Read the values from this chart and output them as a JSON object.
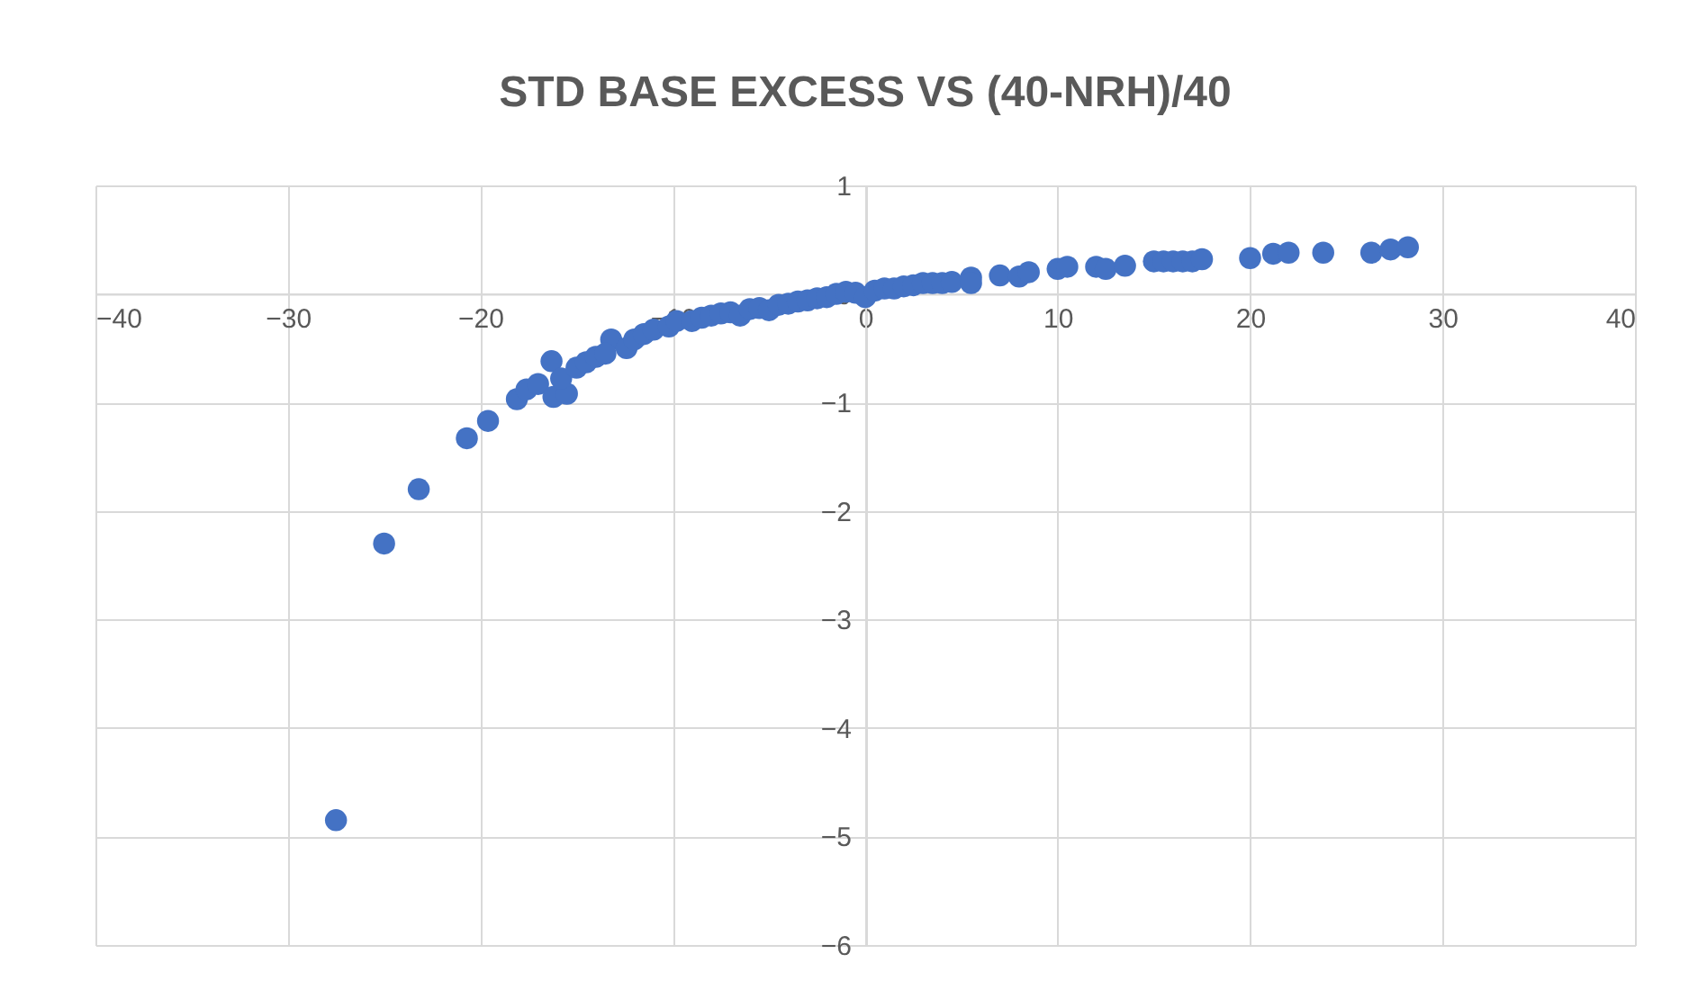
{
  "chart_data": {
    "type": "scatter",
    "title": "STD BASE EXCESS  VS (40-NRH)/40",
    "x": [
      -27.5,
      -25,
      -23.2,
      -20.7,
      -19.6,
      -18.1,
      -17.6,
      -17,
      -16.3,
      -16.2,
      -15.5,
      -15.8,
      -15,
      -14.5,
      -14,
      -13.2,
      -13.5,
      -12.4,
      -12,
      -11.5,
      -11,
      -10.2,
      -9.8,
      -9,
      -8.5,
      -8,
      -7.5,
      -7,
      -6.5,
      -6,
      -5.5,
      -5,
      -4.5,
      -4,
      -3.5,
      -3,
      -2.5,
      -2,
      -1.5,
      -1,
      -0.5,
      0,
      0.5,
      1,
      1.5,
      2,
      2.5,
      3,
      3.5,
      4,
      4.5,
      5.5,
      5.5,
      7,
      8,
      8.5,
      10,
      10.5,
      12,
      12.5,
      13.5,
      15,
      15.5,
      16,
      16.5,
      17,
      17.5,
      20,
      21.2,
      22,
      23.8,
      26.3,
      27.3,
      28.2
    ],
    "series": [
      {
        "color": "#4472c4",
        "values": [
          -4.85,
          -2.3,
          -1.8,
          -1.33,
          -1.17,
          -0.97,
          -0.88,
          -0.83,
          -0.62,
          -0.95,
          -0.92,
          -0.78,
          -0.68,
          -0.63,
          -0.58,
          -0.42,
          -0.55,
          -0.5,
          -0.42,
          -0.37,
          -0.33,
          -0.3,
          -0.25,
          -0.25,
          -0.22,
          -0.2,
          -0.18,
          -0.17,
          -0.2,
          -0.14,
          -0.13,
          -0.15,
          -0.1,
          -0.09,
          -0.07,
          -0.06,
          -0.04,
          -0.03,
          0,
          0.02,
          0.01,
          -0.03,
          0.03,
          0.05,
          0.05,
          0.07,
          0.08,
          0.1,
          0.1,
          0.1,
          0.11,
          0.15,
          0.1,
          0.17,
          0.16,
          0.2,
          0.23,
          0.25,
          0.25,
          0.23,
          0.26,
          0.3,
          0.3,
          0.3,
          0.3,
          0.3,
          0.32,
          0.33,
          0.37,
          0.38,
          0.38,
          0.38,
          0.41,
          0.43
        ]
      }
    ],
    "xlim": [
      -40,
      40
    ],
    "xticks": [
      -40,
      -30,
      -20,
      -10,
      0,
      10,
      20,
      30,
      40
    ],
    "ylim": [
      -6,
      1
    ],
    "yticks": [
      -6,
      -5,
      -4,
      -3,
      -2,
      -1,
      0,
      1
    ],
    "grid": true,
    "marker": "circle"
  }
}
